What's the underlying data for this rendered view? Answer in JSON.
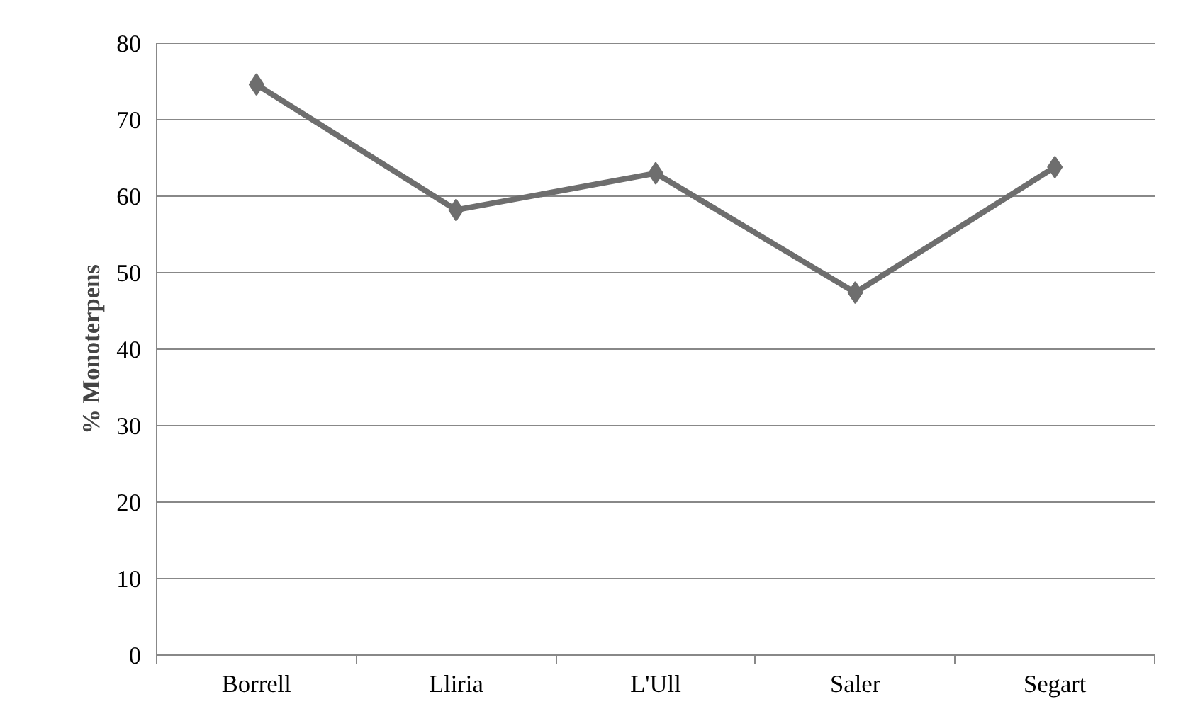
{
  "chart_data": {
    "type": "line",
    "ylabel": "% Monoterpens",
    "categories": [
      "Borrell",
      "Lliria",
      "L'Ull",
      "Saler",
      "Segart"
    ],
    "series": [
      {
        "color": "#6e6e6e",
        "values": [
          74.6,
          58.2,
          63.0,
          47.4,
          63.8
        ]
      }
    ],
    "ylim": [
      0,
      80
    ],
    "yticks": [
      0,
      10,
      20,
      30,
      40,
      50,
      60,
      70,
      80
    ],
    "grid": "y",
    "marker": "diamond",
    "line_style": "solid"
  }
}
